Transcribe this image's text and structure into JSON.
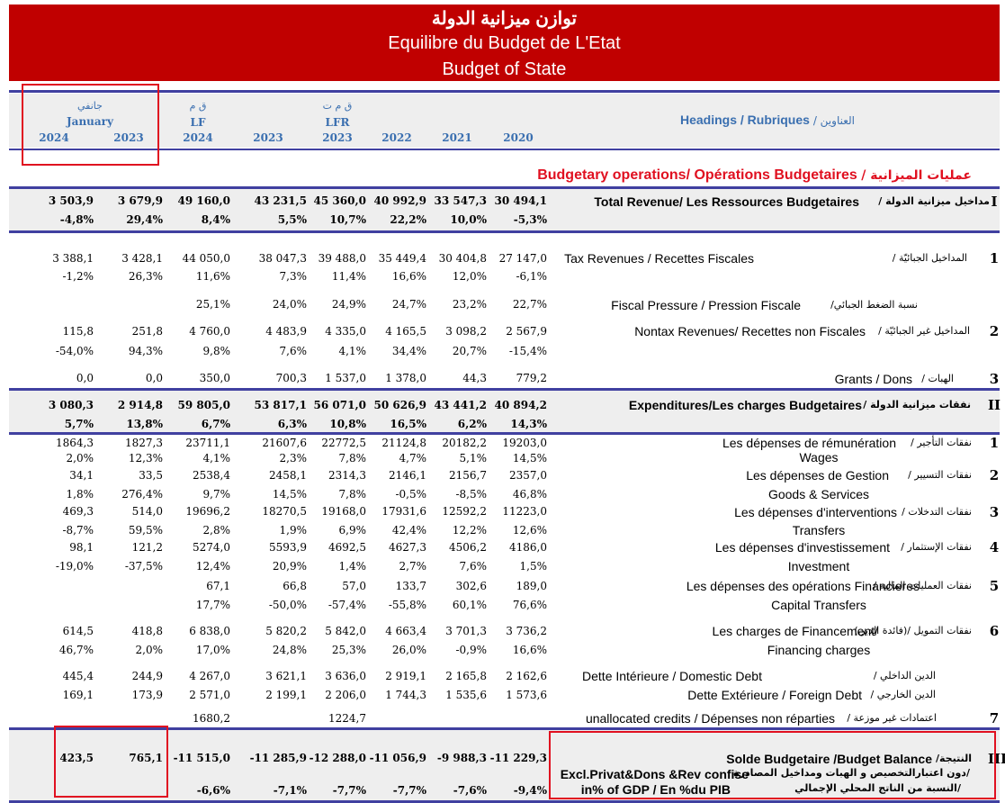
{
  "title": {
    "ar": "توازن ميزانية الدولة",
    "fr": "Equilibre du Budget de L'Etat",
    "en": "Budget of State"
  },
  "header": {
    "january_ar": "جانفي",
    "january": "January",
    "lf_ar": "ق م",
    "lf": "LF",
    "lfr_ar": "ق م ت",
    "lfr": "LFR",
    "years": [
      "2024",
      "2023",
      "2024",
      "2023",
      "2023",
      "2022",
      "2021",
      "2020"
    ],
    "headings": "Headings / Rubriques",
    "headings_ar": "/ العناوين"
  },
  "section_title": {
    "en_fr": "Budgetary operations/ Opérations Budgetaires",
    "ar": "/ عمليات الميزانية"
  },
  "rows": [
    {
      "idx": "I",
      "label": "Total Revenue/ Les Ressources Budgetaires",
      "ar": "/ مداخيل ميزانية الدولة",
      "bold": true,
      "values": [
        "3 503,9",
        "3 679,9",
        "49 160,0",
        "43 231,5",
        "45 360,0",
        "40 992,9",
        "33 547,3",
        "30 494,1"
      ],
      "pct": [
        "-4,8%",
        "29,4%",
        "8,4%",
        "5,5%",
        "10,7%",
        "22,2%",
        "10,0%",
        "-5,3%"
      ]
    },
    {
      "idx": "1",
      "label": "Tax Revenues   /  Recettes Fiscales",
      "ar": "/ المداخيل الجبائيّة",
      "values": [
        "3 388,1",
        "3 428,1",
        "44 050,0",
        "38 047,3",
        "39 488,0",
        "35 449,4",
        "30 404,8",
        "27 147,0"
      ],
      "pct": [
        "-1,2%",
        "26,3%",
        "11,6%",
        "7,3%",
        "11,4%",
        "16,6%",
        "12,0%",
        "-6,1%"
      ]
    },
    {
      "idx": "",
      "label": "Fiscal Pressure / Pression Fiscale",
      "ar": "/نسبة الضغط الجبائي",
      "values": [
        "",
        "",
        "25,1%",
        "24,0%",
        "24,9%",
        "24,7%",
        "23,2%",
        "22,7%"
      ]
    },
    {
      "idx": "2",
      "label": "Nontax Revenues/ Recettes non Fiscales",
      "ar": "/ المداخيل غير الجبائيّة",
      "values": [
        "115,8",
        "251,8",
        "4 760,0",
        "4 483,9",
        "4 335,0",
        "4 165,5",
        "3 098,2",
        "2 567,9"
      ],
      "pct": [
        "-54,0%",
        "94,3%",
        "9,8%",
        "7,6%",
        "4,1%",
        "34,4%",
        "20,7%",
        "-15,4%"
      ]
    },
    {
      "idx": "3",
      "label": "Grants /  Dons",
      "ar": "/ الهبات",
      "values": [
        "0,0",
        "0,0",
        "350,0",
        "700,3",
        "1 537,0",
        "1 378,0",
        "44,3",
        "779,2"
      ]
    },
    {
      "idx": "II",
      "label": "Expenditures/Les charges Budgetaires",
      "ar": "/ نفقات ميزانية الدولة",
      "bold": true,
      "values": [
        "3 080,3",
        "2 914,8",
        "59 805,0",
        "53 817,1",
        "56 071,0",
        "50 626,9",
        "43 441,2",
        "40 894,2"
      ],
      "pct": [
        "5,7%",
        "13,8%",
        "6,7%",
        "6,3%",
        "10,8%",
        "16,5%",
        "6,2%",
        "14,3%"
      ]
    },
    {
      "idx": "1",
      "label": "Les dépenses de rémunération",
      "ar": "/ نفقات التأجير",
      "sub": "Wages",
      "values": [
        "1864,3",
        "1827,3",
        "23711,1",
        "21607,6",
        "22772,5",
        "21124,8",
        "20182,2",
        "19203,0"
      ],
      "pct": [
        "2,0%",
        "12,3%",
        "4,1%",
        "2,3%",
        "7,8%",
        "4,7%",
        "5,1%",
        "14,5%"
      ]
    },
    {
      "idx": "2",
      "label": "Les dépenses de Gestion",
      "ar": "/ نفقات التسيير",
      "sub": "Goods & Services",
      "values": [
        "34,1",
        "33,5",
        "2538,4",
        "2458,1",
        "2314,3",
        "2146,1",
        "2156,7",
        "2357,0"
      ],
      "pct": [
        "1,8%",
        "276,4%",
        "9,7%",
        "14,5%",
        "7,8%",
        "-0,5%",
        "-8,5%",
        "46,8%"
      ]
    },
    {
      "idx": "3",
      "label": "Les dépenses d'interventions",
      "ar": "/ نفقات التدخلات",
      "sub": "Transfers",
      "values": [
        "469,3",
        "514,0",
        "19696,2",
        "18270,5",
        "19168,0",
        "17931,6",
        "12592,2",
        "11223,0"
      ],
      "pct": [
        "-8,7%",
        "59,5%",
        "2,8%",
        "1,9%",
        "6,9%",
        "42,4%",
        "12,2%",
        "12,6%"
      ]
    },
    {
      "idx": "4",
      "label": "Les dépenses d'investissement",
      "ar": "/ نفقات الإستثمار",
      "sub": "Investment",
      "values": [
        "98,1",
        "121,2",
        "5274,0",
        "5593,9",
        "4692,5",
        "4627,3",
        "4506,2",
        "4186,0"
      ],
      "pct": [
        "-19,0%",
        "-37,5%",
        "12,4%",
        "20,9%",
        "1,4%",
        "2,7%",
        "7,6%",
        "1,5%"
      ]
    },
    {
      "idx": "5",
      "label": "Les dépenses des opérations Financieres",
      "ar": "/ نفقات العمليات المالية",
      "sub": "Capital Transfers",
      "values": [
        "",
        "",
        "67,1",
        "66,8",
        "57,0",
        "133,7",
        "302,6",
        "189,0"
      ],
      "pct": [
        "",
        "",
        "17,7%",
        "-50,0%",
        "-57,4%",
        "-55,8%",
        "60,1%",
        "76,6%"
      ]
    },
    {
      "idx": "6",
      "label": "Les charges de Financement/",
      "ar": "(فائدة الدين)/ نفقات التمويل",
      "sub": "Financing charges",
      "values": [
        "614,5",
        "418,8",
        "6 838,0",
        "5 820,2",
        "5 842,0",
        "4 663,4",
        "3 701,3",
        "3 736,2"
      ],
      "pct": [
        "46,7%",
        "2,0%",
        "17,0%",
        "24,8%",
        "25,3%",
        "26,0%",
        "-0,9%",
        "16,6%"
      ]
    },
    {
      "idx": "",
      "label": "Dette Intérieure /   Domestic Debt",
      "ar": "/ الدين الداخلي",
      "values": [
        "445,4",
        "244,9",
        "4 267,0",
        "3 621,1",
        "3 636,0",
        "2 919,1",
        "2 165,8",
        "2 162,6"
      ]
    },
    {
      "idx": "",
      "label": "Dette Extérieure /  Foreign Debt",
      "ar": "/ الدين الخارجي",
      "values": [
        "169,1",
        "173,9",
        "2 571,0",
        "2 199,1",
        "2 206,0",
        "1 744,3",
        "1 535,6",
        "1 573,6"
      ]
    },
    {
      "idx": "7",
      "label": "unallocated credits / Dépenses non réparties",
      "ar": "/ اعتمادات غير موزعة",
      "values": [
        "",
        "",
        "1680,2",
        "",
        "1224,7",
        "",
        "",
        ""
      ]
    },
    {
      "idx": "III",
      "label": "Solde Budgetaire /Budget Balance",
      "ar": "/النتيجة",
      "bold": true,
      "sub_ar": "دون اعتبارالتخصيص و الهبات ومداخيل المصادرة/",
      "sub": "Excl.Privat&Dons &Rev confise",
      "sub2_ar": "النسبة  من الناتج المحلي الإجمالي/",
      "sub2": "in% of GDP / En %du PIB",
      "values": [
        "423,5",
        "765,1",
        "-11 515,0",
        "-11 285,9",
        "-12 288,0",
        "-11 056,9",
        "-9 988,3",
        "-11 229,3"
      ],
      "pct": [
        "",
        "",
        "-6,6%",
        "-7,1%",
        "-7,7%",
        "-7,7%",
        "-7,6%",
        "-9,4%"
      ]
    }
  ]
}
